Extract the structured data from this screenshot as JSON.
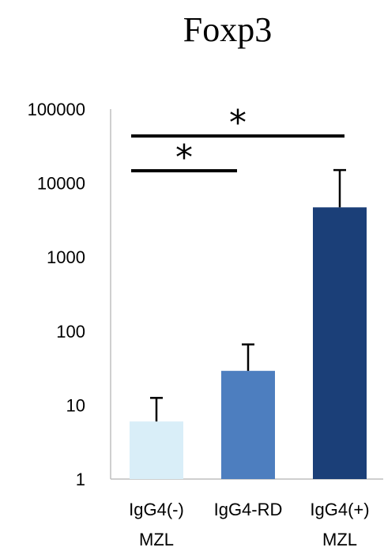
{
  "chart_data": {
    "type": "bar",
    "title": "Foxp3",
    "xlabel": "",
    "ylabel": "",
    "yscale": "log",
    "ylim": [
      1,
      100000
    ],
    "ytick_labels": [
      "1",
      "10",
      "100",
      "1000",
      "10000",
      "100000"
    ],
    "categories": [
      [
        "IgG4(-)",
        "MZL"
      ],
      [
        "IgG4-RD"
      ],
      [
        "IgG4(+)",
        "MZL"
      ]
    ],
    "values": [
      6,
      29,
      4700
    ],
    "error_upper": [
      12.5,
      66,
      15000
    ],
    "colors": [
      "#d9eef8",
      "#4d7ebf",
      "#1b3f78"
    ],
    "grid": false,
    "legend": "none",
    "significance": [
      {
        "from": 0,
        "to": 1,
        "label": "*"
      },
      {
        "from": 0,
        "to": 2,
        "label": "*"
      }
    ]
  }
}
